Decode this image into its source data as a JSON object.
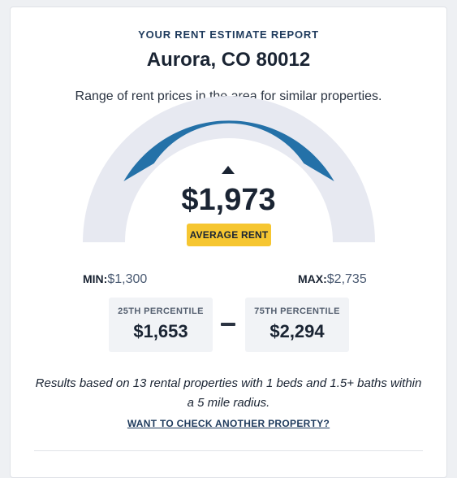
{
  "report": {
    "kicker": "YOUR RENT ESTIMATE REPORT",
    "location": "Aurora, CO 80012",
    "subtitle": "Range of rent prices in the area for similar properties."
  },
  "gauge": {
    "average_value": "$1,973",
    "average_label": "AVERAGE RENT",
    "min_label": "MIN:",
    "min_value": "$1,300",
    "max_label": "MAX:",
    "max_value": "$2,735",
    "colors": {
      "track": "#e7e9f1",
      "highlight": "#2471a8",
      "badge": "#f6c631"
    }
  },
  "percentiles": {
    "p25_label": "25TH PERCENTILE",
    "p25_value": "$1,653",
    "p75_label": "75TH PERCENTILE",
    "p75_value": "$2,294"
  },
  "results_text": "Results based on 13 rental properties with 1 beds and 1.5+ baths within a 5 mile radius.",
  "check_link": "WANT TO CHECK ANOTHER PROPERTY?"
}
